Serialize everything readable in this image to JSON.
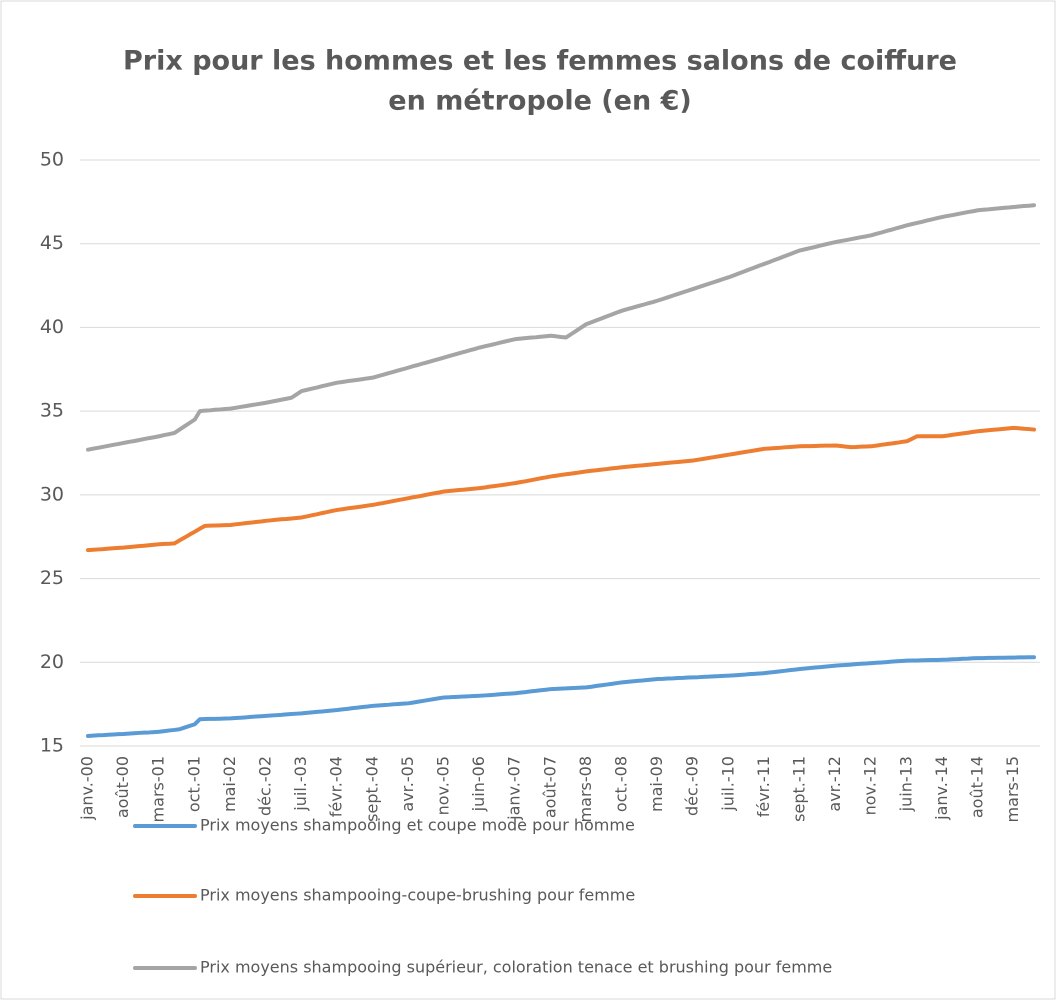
{
  "chart_data": {
    "type": "line",
    "title": [
      "Prix pour les hommes et les femmes salons de coiffure",
      "en métropole (en €)"
    ],
    "categories": [
      "janv.-00",
      null,
      null,
      null,
      null,
      null,
      null,
      "août-00",
      null,
      null,
      null,
      null,
      null,
      null,
      "mars-01",
      null,
      null,
      null,
      null,
      null,
      null,
      "oct.-01",
      null,
      null,
      null,
      null,
      null,
      null,
      "mai-02",
      null,
      null,
      null,
      null,
      null,
      null,
      "déc.-02",
      null,
      null,
      null,
      null,
      null,
      null,
      "juil.-03",
      null,
      null,
      null,
      null,
      null,
      null,
      "févr.-04",
      null,
      null,
      null,
      null,
      null,
      null,
      "sept.-04",
      null,
      null,
      null,
      null,
      null,
      null,
      "avr.-05",
      null,
      null,
      null,
      null,
      null,
      null,
      "nov.-05",
      null,
      null,
      null,
      null,
      null,
      null,
      "juin-06",
      null,
      null,
      null,
      null,
      null,
      null,
      "janv.-07",
      null,
      null,
      null,
      null,
      null,
      null,
      "août-07",
      null,
      null,
      null,
      null,
      null,
      null,
      "mars-08",
      null,
      null,
      null,
      null,
      null,
      null,
      "oct.-08",
      null,
      null,
      null,
      null,
      null,
      null,
      "mai-09",
      null,
      null,
      null,
      null,
      null,
      null,
      "déc.-09",
      null,
      null,
      null,
      null,
      null,
      null,
      "juil.-10",
      null,
      null,
      null,
      null,
      null,
      null,
      "févr.-11",
      null,
      null,
      null,
      null,
      null,
      null,
      "sept.-11",
      null,
      null,
      null,
      null,
      null,
      null,
      "avr.-12",
      null,
      null,
      null,
      null,
      null,
      null,
      "nov.-12",
      null,
      null,
      null,
      null,
      null,
      null,
      "juin-13",
      null,
      null,
      null,
      null,
      null,
      null,
      "janv.-14",
      null,
      null,
      null,
      null,
      null,
      null,
      "août-14",
      null,
      null,
      null,
      null,
      null,
      null,
      "mars-15",
      null,
      null,
      null,
      null
    ],
    "series": [
      {
        "name": "Prix moyens shampooing et coupe mode pour homme",
        "color": "#5b9bd5",
        "values": [
          15.6,
          15.62,
          15.64,
          15.65,
          15.67,
          15.69,
          15.71,
          15.72,
          15.74,
          15.76,
          15.78,
          15.8,
          15.81,
          15.83,
          15.85,
          15.89,
          15.93,
          15.96,
          16.0,
          16.1,
          16.2,
          16.3,
          16.6,
          16.61,
          16.62,
          16.62,
          16.63,
          16.64,
          16.65,
          16.67,
          16.69,
          16.71,
          16.74,
          16.76,
          16.78,
          16.8,
          16.82,
          16.84,
          16.86,
          16.89,
          16.91,
          16.93,
          16.95,
          16.98,
          17.01,
          17.04,
          17.06,
          17.09,
          17.12,
          17.15,
          17.19,
          17.22,
          17.26,
          17.29,
          17.33,
          17.36,
          17.4,
          17.42,
          17.44,
          17.46,
          17.49,
          17.51,
          17.53,
          17.55,
          17.6,
          17.65,
          17.7,
          17.75,
          17.8,
          17.85,
          17.9,
          17.91,
          17.93,
          17.94,
          17.96,
          17.97,
          17.99,
          18.0,
          18.02,
          18.04,
          18.06,
          18.09,
          18.11,
          18.13,
          18.15,
          18.19,
          18.22,
          18.26,
          18.29,
          18.33,
          18.36,
          18.4,
          18.41,
          18.43,
          18.44,
          18.46,
          18.47,
          18.49,
          18.5,
          18.54,
          18.59,
          18.63,
          18.67,
          18.71,
          18.76,
          18.8,
          18.83,
          18.86,
          18.89,
          18.91,
          18.94,
          18.97,
          19.0,
          19.01,
          19.03,
          19.04,
          19.06,
          19.07,
          19.09,
          19.1,
          19.11,
          19.13,
          19.14,
          19.16,
          19.17,
          19.19,
          19.2,
          19.22,
          19.24,
          19.26,
          19.29,
          19.31,
          19.33,
          19.35,
          19.39,
          19.42,
          19.46,
          19.49,
          19.53,
          19.56,
          19.6,
          19.63,
          19.66,
          19.69,
          19.71,
          19.74,
          19.77,
          19.8,
          19.82,
          19.84,
          19.86,
          19.89,
          19.91,
          19.93,
          19.95,
          19.97,
          19.99,
          20.01,
          20.04,
          20.06,
          20.08,
          20.1,
          20.11,
          20.11,
          20.12,
          20.13,
          20.14,
          20.14,
          20.15,
          20.16,
          20.18,
          20.19,
          20.21,
          20.22,
          20.24,
          20.25,
          20.25,
          20.26,
          20.26,
          20.27,
          20.27,
          20.28,
          20.28,
          20.29,
          20.29,
          20.3,
          20.3
        ]
      },
      {
        "name": "Prix moyens shampooing-coupe-brushing pour femme",
        "color": "#ed7d31",
        "values": [
          26.7,
          26.72,
          26.74,
          26.76,
          26.79,
          26.81,
          26.83,
          26.85,
          26.88,
          26.91,
          26.94,
          26.96,
          26.99,
          27.02,
          27.05,
          27.07,
          27.08,
          27.1,
          27.28,
          27.45,
          27.63,
          27.8,
          27.98,
          28.15,
          28.16,
          28.17,
          28.18,
          28.19,
          28.2,
          28.24,
          28.27,
          28.31,
          28.34,
          28.38,
          28.41,
          28.45,
          28.48,
          28.51,
          28.54,
          28.56,
          28.59,
          28.62,
          28.65,
          28.71,
          28.78,
          28.84,
          28.91,
          28.97,
          29.04,
          29.1,
          29.14,
          29.19,
          29.23,
          29.27,
          29.31,
          29.36,
          29.4,
          29.46,
          29.51,
          29.57,
          29.63,
          29.69,
          29.74,
          29.8,
          29.86,
          29.91,
          29.97,
          30.03,
          30.09,
          30.14,
          30.2,
          30.23,
          30.26,
          30.29,
          30.31,
          30.34,
          30.37,
          30.4,
          30.44,
          30.49,
          30.53,
          30.57,
          30.61,
          30.66,
          30.7,
          30.76,
          30.81,
          30.87,
          30.93,
          30.99,
          31.04,
          31.1,
          31.14,
          31.19,
          31.23,
          31.27,
          31.31,
          31.36,
          31.4,
          31.44,
          31.47,
          31.51,
          31.54,
          31.58,
          31.61,
          31.65,
          31.68,
          31.71,
          31.74,
          31.76,
          31.79,
          31.82,
          31.85,
          31.88,
          31.91,
          31.94,
          31.96,
          31.99,
          32.02,
          32.05,
          32.1,
          32.15,
          32.2,
          32.25,
          32.3,
          32.35,
          32.4,
          32.45,
          32.5,
          32.55,
          32.6,
          32.65,
          32.7,
          32.75,
          32.77,
          32.79,
          32.81,
          32.84,
          32.86,
          32.88,
          32.9,
          32.91,
          32.91,
          32.92,
          32.93,
          32.94,
          32.94,
          32.95,
          32.92,
          32.88,
          32.85,
          32.86,
          32.88,
          32.89,
          32.9,
          32.94,
          32.99,
          33.03,
          33.07,
          33.11,
          33.16,
          33.2,
          33.35,
          33.5,
          33.5,
          33.5,
          33.5,
          33.5,
          33.5,
          33.54,
          33.59,
          33.63,
          33.67,
          33.71,
          33.76,
          33.8,
          33.83,
          33.86,
          33.89,
          33.91,
          33.94,
          33.97,
          34.0,
          33.98,
          33.95,
          33.93,
          33.9
        ]
      },
      {
        "name": "Prix moyens shampooing supérieur, coloration tenace et brushing pour femme",
        "color": "#a5a5a5",
        "values": [
          32.7,
          32.76,
          32.81,
          32.87,
          32.93,
          32.99,
          33.04,
          33.1,
          33.16,
          33.21,
          33.27,
          33.33,
          33.39,
          33.44,
          33.5,
          33.57,
          33.63,
          33.7,
          33.9,
          34.1,
          34.3,
          34.5,
          35.0,
          35.03,
          35.05,
          35.08,
          35.1,
          35.13,
          35.15,
          35.2,
          35.25,
          35.3,
          35.35,
          35.4,
          35.45,
          35.5,
          35.56,
          35.62,
          35.68,
          35.74,
          35.8,
          36.0,
          36.2,
          36.27,
          36.34,
          36.41,
          36.49,
          36.56,
          36.63,
          36.7,
          36.74,
          36.79,
          36.83,
          36.87,
          36.91,
          36.96,
          37.0,
          37.09,
          37.17,
          37.26,
          37.34,
          37.43,
          37.51,
          37.6,
          37.69,
          37.77,
          37.86,
          37.94,
          38.03,
          38.11,
          38.2,
          38.29,
          38.37,
          38.46,
          38.54,
          38.63,
          38.71,
          38.8,
          38.87,
          38.94,
          39.01,
          39.09,
          39.16,
          39.23,
          39.3,
          39.33,
          39.36,
          39.39,
          39.41,
          39.44,
          39.47,
          39.5,
          39.47,
          39.43,
          39.4,
          39.6,
          39.8,
          40.0,
          40.2,
          40.31,
          40.43,
          40.54,
          40.66,
          40.77,
          40.89,
          41.0,
          41.09,
          41.17,
          41.26,
          41.34,
          41.43,
          41.51,
          41.6,
          41.7,
          41.8,
          41.9,
          42.0,
          42.1,
          42.2,
          42.3,
          42.4,
          42.5,
          42.6,
          42.7,
          42.8,
          42.9,
          43.0,
          43.11,
          43.23,
          43.34,
          43.46,
          43.57,
          43.69,
          43.8,
          43.91,
          44.03,
          44.14,
          44.26,
          44.37,
          44.49,
          44.6,
          44.67,
          44.74,
          44.81,
          44.89,
          44.96,
          45.03,
          45.1,
          45.16,
          45.21,
          45.27,
          45.33,
          45.39,
          45.44,
          45.5,
          45.59,
          45.67,
          45.76,
          45.84,
          45.93,
          46.01,
          46.1,
          46.17,
          46.24,
          46.31,
          46.39,
          46.46,
          46.53,
          46.6,
          46.66,
          46.71,
          46.77,
          46.83,
          46.89,
          46.94,
          47.0,
          47.03,
          47.05,
          47.08,
          47.11,
          47.14,
          47.16,
          47.19,
          47.22,
          47.25,
          47.27,
          47.3
        ]
      }
    ],
    "ylim": [
      15,
      50
    ],
    "yticks": [
      15,
      20,
      25,
      30,
      35,
      40,
      45,
      50
    ],
    "grid": true,
    "legend": "bottom"
  }
}
